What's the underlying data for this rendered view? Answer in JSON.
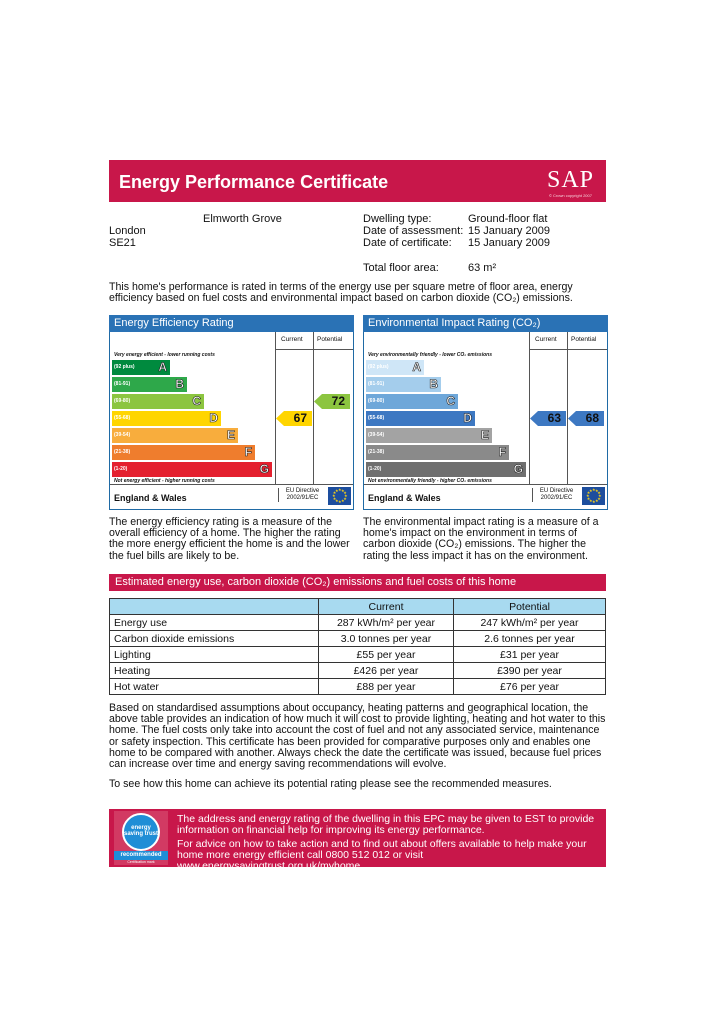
{
  "header": {
    "title": "Energy Performance Certificate",
    "logo_text": "SAP",
    "logo_sub": "© Crown copyright 2007"
  },
  "address": {
    "line1": "Elmworth Grove",
    "line2": "London",
    "line3": "SE21"
  },
  "details": {
    "dwelling_label": "Dwelling type:",
    "dwelling_value": "Ground-floor flat",
    "assessment_label": "Date of assessment:",
    "assessment_value": "15 January 2009",
    "certificate_label": "Date of certificate:",
    "certificate_value": "15 January 2009",
    "floor_label": "Total floor area:",
    "floor_value": "63 m²"
  },
  "intro": "This home's performance is rated in terms of the energy use per square metre of floor area, energy efficiency based on fuel costs and environmental impact based on carbon dioxide (CO₂) emissions.",
  "eer": {
    "title": "Energy Efficiency Rating",
    "col_current": "Current",
    "col_potential": "Potential",
    "top_text": "Very energy efficient - lower running costs",
    "bottom_text": "Not energy efficient - higher running costs",
    "bands": [
      {
        "range": "(92 plus)",
        "letter": "A",
        "color": "#008a3e"
      },
      {
        "range": "(81-91)",
        "letter": "B",
        "color": "#2ea84a"
      },
      {
        "range": "(69-80)",
        "letter": "C",
        "color": "#8cc540"
      },
      {
        "range": "(55-68)",
        "letter": "D",
        "color": "#ffd500"
      },
      {
        "range": "(39-54)",
        "letter": "E",
        "color": "#f8ad3d"
      },
      {
        "range": "(21-38)",
        "letter": "F",
        "color": "#ef7d2d"
      },
      {
        "range": "(1-20)",
        "letter": "G",
        "color": "#e4202f"
      }
    ],
    "current": 67,
    "potential": 72,
    "current_color": "#ffd500",
    "potential_color": "#8cc540",
    "region": "England & Wales",
    "directive": "EU Directive 2002/91/EC"
  },
  "eir": {
    "title": "Environmental Impact Rating (CO₂)",
    "col_current": "Current",
    "col_potential": "Potential",
    "top_text": "Very environmentally friendly - lower CO₂ emissions",
    "bottom_text": "Not environmentally friendly - higher CO₂ emissions",
    "bands": [
      {
        "range": "(92 plus)",
        "letter": "A",
        "color": "#cfe6f7"
      },
      {
        "range": "(81-91)",
        "letter": "B",
        "color": "#a4cdec"
      },
      {
        "range": "(69-80)",
        "letter": "C",
        "color": "#6ea7d9"
      },
      {
        "range": "(55-68)",
        "letter": "D",
        "color": "#3d78c2"
      },
      {
        "range": "(39-54)",
        "letter": "E",
        "color": "#a3a3a3"
      },
      {
        "range": "(21-38)",
        "letter": "F",
        "color": "#8a8a8a"
      },
      {
        "range": "(1-20)",
        "letter": "G",
        "color": "#6f6f6f"
      }
    ],
    "current": 63,
    "potential": 68,
    "current_color": "#3d78c2",
    "potential_color": "#3d78c2",
    "region": "England & Wales",
    "directive": "EU Directive 2002/91/EC"
  },
  "eer_desc": "The energy efficiency rating is a measure of the overall efficiency of a home. The higher the rating the more energy efficient the home is and the lower the fuel bills are likely to be.",
  "eir_desc": "The environmental impact rating is a measure of a home's impact on the environment in terms of carbon dioxide (CO₂) emissions. The higher the rating the less impact it has on the environment.",
  "costs": {
    "title": "Estimated energy use, carbon dioxide (CO₂) emissions and fuel costs of this home",
    "col_current": "Current",
    "col_potential": "Potential",
    "rows": [
      {
        "label": "Energy use",
        "current": "287 kWh/m² per year",
        "potential": "247 kWh/m² per year"
      },
      {
        "label": "Carbon dioxide emissions",
        "current": "3.0 tonnes per year",
        "potential": "2.6 tonnes per year"
      },
      {
        "label": "Lighting",
        "current": "£55 per year",
        "potential": "£31 per year"
      },
      {
        "label": "Heating",
        "current": "£426 per year",
        "potential": "£390 per year"
      },
      {
        "label": "Hot water",
        "current": "£88 per year",
        "potential": "£76 per year"
      }
    ]
  },
  "assumptions": "Based on standardised assumptions about occupancy, heating patterns and geographical location, the above table provides an indication of how much it will cost to provide lighting, heating and hot water to this home. The fuel costs only take into account the cost of fuel and not any associated service, maintenance or safety inspection. This certificate has been provided for comparative purposes only and enables one home to be compared with another. Always check the date the certificate was issued, because fuel prices can increase over time and energy saving recommendations will evolve.",
  "recommend": "To see how this home can achieve its potential rating please see the recommended measures.",
  "banner": {
    "p1": "The address and energy rating of the dwelling in this EPC may be given to EST to provide information on financial help for improving its energy performance.",
    "p2": "For advice on how to take action and to find out about offers available to help make your home more energy efficient call 0800 512 012 or visit www.energysavingtrust.org.uk/myhome",
    "logo_top": "energy saving trust",
    "logo_rec": "recommended",
    "logo_cert": "Certification mark"
  }
}
